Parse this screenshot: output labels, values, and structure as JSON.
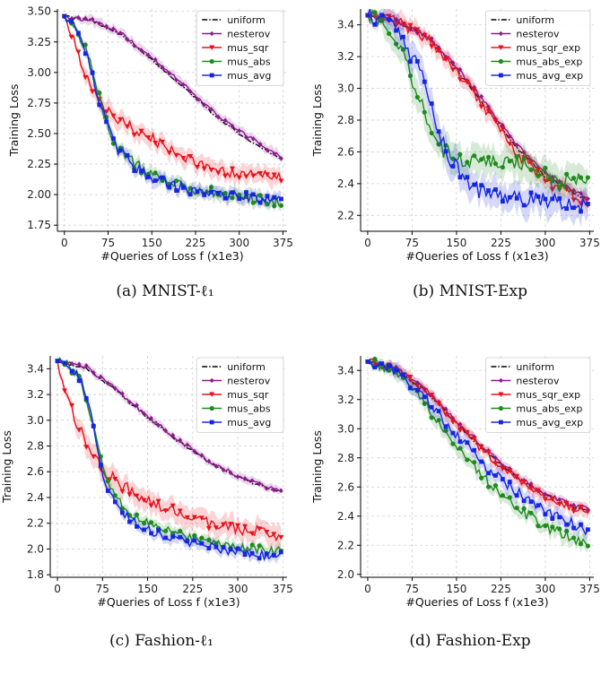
{
  "chart_data": [
    {
      "type": "line",
      "caption": "(a) MNIST-ℓ₁",
      "xlabel": "#Queries of Loss f (x1e3)",
      "ylabel": "Training Loss",
      "xlim": [
        -12,
        382
      ],
      "ylim": [
        1.7,
        3.52
      ],
      "xticks": [
        0,
        75,
        150,
        225,
        300,
        375
      ],
      "yticks": [
        1.75,
        2.0,
        2.25,
        2.5,
        2.75,
        3.0,
        3.25,
        3.5
      ],
      "ytick_labels": [
        "1.75",
        "2.00",
        "2.25",
        "2.50",
        "2.75",
        "3.00",
        "3.25",
        "3.50"
      ],
      "grid": true,
      "legend": "top-right",
      "series": [
        {
          "name": "uniform",
          "color": "#000000",
          "style": "dashdot",
          "marker": "none",
          "band": 0.0,
          "noise": 0.01,
          "x": [
            0,
            50,
            100,
            150,
            200,
            250,
            300,
            350,
            375
          ],
          "y": [
            3.46,
            3.42,
            3.3,
            3.1,
            2.9,
            2.68,
            2.5,
            2.35,
            2.29
          ]
        },
        {
          "name": "nesterov",
          "color": "#8b1a8b",
          "style": "solid",
          "marker": "diamond",
          "band": 0.04,
          "noise": 0.015,
          "x": [
            0,
            50,
            100,
            150,
            200,
            250,
            300,
            350,
            375
          ],
          "y": [
            3.46,
            3.42,
            3.31,
            3.12,
            2.92,
            2.7,
            2.52,
            2.37,
            2.3
          ]
        },
        {
          "name": "mus_sqr",
          "color": "#e8101a",
          "style": "solid",
          "marker": "triangle",
          "band": 0.07,
          "noise": 0.045,
          "x": [
            0,
            15,
            30,
            45,
            60,
            75,
            100,
            125,
            150,
            175,
            200,
            225,
            250,
            275,
            300,
            325,
            350,
            375
          ],
          "y": [
            3.46,
            3.28,
            3.02,
            2.9,
            2.76,
            2.68,
            2.59,
            2.52,
            2.46,
            2.38,
            2.31,
            2.26,
            2.22,
            2.19,
            2.17,
            2.16,
            2.15,
            2.13
          ]
        },
        {
          "name": "mus_abs",
          "color": "#1f8b1f",
          "style": "solid",
          "marker": "circle",
          "band": 0.05,
          "noise": 0.045,
          "x": [
            0,
            20,
            40,
            60,
            75,
            90,
            110,
            130,
            150,
            175,
            200,
            225,
            250,
            275,
            300,
            325,
            350,
            375
          ],
          "y": [
            3.46,
            3.38,
            3.15,
            2.8,
            2.55,
            2.4,
            2.3,
            2.22,
            2.16,
            2.12,
            2.08,
            2.04,
            2.02,
            2.0,
            1.98,
            1.97,
            1.95,
            1.91
          ]
        },
        {
          "name": "mus_avg",
          "color": "#1526e0",
          "style": "solid",
          "marker": "square",
          "band": 0.05,
          "noise": 0.045,
          "x": [
            0,
            20,
            40,
            60,
            75,
            90,
            110,
            130,
            150,
            175,
            200,
            225,
            250,
            275,
            300,
            325,
            350,
            375
          ],
          "y": [
            3.46,
            3.38,
            3.12,
            2.78,
            2.55,
            2.38,
            2.28,
            2.2,
            2.14,
            2.1,
            2.06,
            2.03,
            2.01,
            2.0,
            1.99,
            1.98,
            1.97,
            1.95
          ]
        }
      ]
    },
    {
      "type": "line",
      "caption": "(b) MNIST-Exp",
      "xlabel": "#Queries of Loss f (x1e3)",
      "ylabel": "Training Loss",
      "xlim": [
        -12,
        382
      ],
      "ylim": [
        2.1,
        3.5
      ],
      "xticks": [
        0,
        75,
        150,
        225,
        300,
        375
      ],
      "yticks": [
        2.2,
        2.4,
        2.6,
        2.8,
        3.0,
        3.2,
        3.4
      ],
      "ytick_labels": [
        "2.2",
        "2.4",
        "2.6",
        "2.8",
        "3.0",
        "3.2",
        "3.4"
      ],
      "grid": true,
      "legend": "top-right",
      "series": [
        {
          "name": "uniform",
          "color": "#000000",
          "style": "dashdot",
          "marker": "none",
          "band": 0.0,
          "noise": 0.01,
          "x": [
            0,
            50,
            100,
            150,
            200,
            250,
            300,
            350,
            375
          ],
          "y": [
            3.46,
            3.42,
            3.33,
            3.12,
            2.88,
            2.63,
            2.44,
            2.34,
            2.29
          ]
        },
        {
          "name": "nesterov",
          "color": "#8b1a8b",
          "style": "solid",
          "marker": "diamond",
          "band": 0.03,
          "noise": 0.015,
          "x": [
            0,
            50,
            100,
            150,
            200,
            250,
            300,
            350,
            375
          ],
          "y": [
            3.46,
            3.42,
            3.33,
            3.14,
            2.9,
            2.65,
            2.46,
            2.35,
            2.31
          ]
        },
        {
          "name": "mus_sqr_exp",
          "color": "#e8101a",
          "style": "solid",
          "marker": "triangle",
          "band": 0.05,
          "noise": 0.035,
          "x": [
            0,
            50,
            100,
            150,
            200,
            250,
            300,
            350,
            375
          ],
          "y": [
            3.46,
            3.42,
            3.32,
            3.1,
            2.87,
            2.6,
            2.42,
            2.32,
            2.27
          ]
        },
        {
          "name": "mus_abs_exp",
          "color": "#1f8b1f",
          "style": "solid",
          "marker": "circle",
          "band": 0.09,
          "noise": 0.05,
          "x": [
            0,
            30,
            60,
            80,
            100,
            115,
            130,
            150,
            175,
            200,
            225,
            250,
            275,
            300,
            325,
            350,
            375
          ],
          "y": [
            3.46,
            3.4,
            3.22,
            3.0,
            2.8,
            2.66,
            2.6,
            2.56,
            2.55,
            2.55,
            2.55,
            2.54,
            2.5,
            2.45,
            2.42,
            2.42,
            2.44
          ]
        },
        {
          "name": "mus_avg_exp",
          "color": "#1526e0",
          "style": "solid",
          "marker": "square",
          "band": 0.09,
          "noise": 0.05,
          "x": [
            0,
            40,
            75,
            100,
            120,
            140,
            160,
            175,
            200,
            225,
            250,
            275,
            300,
            325,
            350,
            375
          ],
          "y": [
            3.46,
            3.4,
            3.2,
            3.0,
            2.72,
            2.55,
            2.44,
            2.38,
            2.34,
            2.32,
            2.31,
            2.3,
            2.3,
            2.29,
            2.28,
            2.25
          ]
        }
      ]
    },
    {
      "type": "line",
      "caption": "(c) Fashion-ℓ₁",
      "xlabel": "#Queries of Loss f (x1e3)",
      "ylabel": "Training Loss",
      "xlim": [
        -12,
        382
      ],
      "ylim": [
        1.78,
        3.5
      ],
      "xticks": [
        0,
        75,
        150,
        225,
        300,
        375
      ],
      "yticks": [
        1.8,
        2.0,
        2.2,
        2.4,
        2.6,
        2.8,
        3.0,
        3.2,
        3.4
      ],
      "ytick_labels": [
        "1.8",
        "2.0",
        "2.2",
        "2.4",
        "2.6",
        "2.8",
        "3.0",
        "3.2",
        "3.4"
      ],
      "grid": true,
      "legend": "top-right",
      "series": [
        {
          "name": "uniform",
          "color": "#000000",
          "style": "dashdot",
          "marker": "none",
          "band": 0.0,
          "noise": 0.01,
          "x": [
            0,
            50,
            100,
            150,
            200,
            250,
            300,
            350,
            375
          ],
          "y": [
            3.46,
            3.4,
            3.22,
            3.02,
            2.84,
            2.68,
            2.56,
            2.47,
            2.45
          ]
        },
        {
          "name": "nesterov",
          "color": "#8b1a8b",
          "style": "solid",
          "marker": "diamond",
          "band": 0.03,
          "noise": 0.015,
          "x": [
            0,
            50,
            100,
            150,
            200,
            250,
            300,
            350,
            375
          ],
          "y": [
            3.46,
            3.41,
            3.23,
            3.03,
            2.85,
            2.69,
            2.57,
            2.48,
            2.46
          ]
        },
        {
          "name": "mus_sqr",
          "color": "#e8101a",
          "style": "solid",
          "marker": "triangle",
          "band": 0.08,
          "noise": 0.05,
          "x": [
            0,
            15,
            30,
            45,
            60,
            75,
            100,
            125,
            150,
            175,
            200,
            225,
            250,
            275,
            300,
            325,
            350,
            375
          ],
          "y": [
            3.46,
            3.2,
            3.0,
            2.86,
            2.72,
            2.62,
            2.52,
            2.44,
            2.38,
            2.32,
            2.27,
            2.24,
            2.21,
            2.18,
            2.16,
            2.14,
            2.12,
            2.1
          ]
        },
        {
          "name": "mus_abs",
          "color": "#1f8b1f",
          "style": "solid",
          "marker": "circle",
          "band": 0.04,
          "noise": 0.035,
          "x": [
            0,
            20,
            40,
            55,
            65,
            75,
            90,
            110,
            130,
            150,
            175,
            200,
            225,
            250,
            275,
            300,
            325,
            350,
            375
          ],
          "y": [
            3.46,
            3.42,
            3.3,
            3.05,
            2.85,
            2.62,
            2.45,
            2.32,
            2.25,
            2.2,
            2.16,
            2.12,
            2.09,
            2.06,
            2.04,
            2.02,
            2.0,
            1.99,
            1.98
          ]
        },
        {
          "name": "mus_avg",
          "color": "#1526e0",
          "style": "solid",
          "marker": "square",
          "band": 0.04,
          "noise": 0.035,
          "x": [
            0,
            20,
            40,
            55,
            65,
            75,
            90,
            110,
            130,
            150,
            175,
            200,
            225,
            250,
            275,
            300,
            325,
            350,
            375
          ],
          "y": [
            3.46,
            3.42,
            3.3,
            3.05,
            2.82,
            2.58,
            2.4,
            2.27,
            2.2,
            2.15,
            2.11,
            2.07,
            2.04,
            2.02,
            2.0,
            1.98,
            1.96,
            1.95,
            1.96
          ]
        }
      ]
    },
    {
      "type": "line",
      "caption": "(d) Fashion-Exp",
      "xlabel": "#Queries of Loss f (x1e3)",
      "ylabel": "Training Loss",
      "xlim": [
        -12,
        382
      ],
      "ylim": [
        1.98,
        3.5
      ],
      "xticks": [
        0,
        75,
        150,
        225,
        300,
        375
      ],
      "yticks": [
        2.0,
        2.2,
        2.4,
        2.6,
        2.8,
        3.0,
        3.2,
        3.4
      ],
      "ytick_labels": [
        "2.0",
        "2.2",
        "2.4",
        "2.6",
        "2.8",
        "3.0",
        "3.2",
        "3.4"
      ],
      "grid": true,
      "legend": "top-right",
      "series": [
        {
          "name": "uniform",
          "color": "#000000",
          "style": "dashdot",
          "marker": "none",
          "band": 0.0,
          "noise": 0.01,
          "x": [
            0,
            50,
            100,
            150,
            200,
            250,
            300,
            350,
            375
          ],
          "y": [
            3.46,
            3.41,
            3.25,
            3.04,
            2.84,
            2.67,
            2.55,
            2.46,
            2.44
          ]
        },
        {
          "name": "nesterov",
          "color": "#8b1a8b",
          "style": "solid",
          "marker": "diamond",
          "band": 0.03,
          "noise": 0.015,
          "x": [
            0,
            50,
            100,
            150,
            200,
            250,
            300,
            350,
            375
          ],
          "y": [
            3.46,
            3.41,
            3.26,
            3.05,
            2.85,
            2.68,
            2.55,
            2.47,
            2.45
          ]
        },
        {
          "name": "mus_sqr_exp",
          "color": "#e8101a",
          "style": "solid",
          "marker": "triangle",
          "band": 0.04,
          "noise": 0.025,
          "x": [
            0,
            50,
            100,
            150,
            200,
            250,
            300,
            350,
            375
          ],
          "y": [
            3.46,
            3.41,
            3.25,
            3.03,
            2.83,
            2.66,
            2.54,
            2.45,
            2.43
          ]
        },
        {
          "name": "mus_abs_exp",
          "color": "#1f8b1f",
          "style": "solid",
          "marker": "circle",
          "band": 0.05,
          "noise": 0.035,
          "x": [
            0,
            50,
            100,
            150,
            200,
            250,
            300,
            350,
            375
          ],
          "y": [
            3.46,
            3.4,
            3.15,
            2.88,
            2.65,
            2.46,
            2.33,
            2.24,
            2.18
          ]
        },
        {
          "name": "mus_avg_exp",
          "color": "#1526e0",
          "style": "solid",
          "marker": "square",
          "band": 0.05,
          "noise": 0.035,
          "x": [
            0,
            50,
            100,
            150,
            200,
            250,
            300,
            350,
            375
          ],
          "y": [
            3.46,
            3.4,
            3.2,
            2.96,
            2.74,
            2.57,
            2.44,
            2.34,
            2.28
          ]
        }
      ]
    }
  ]
}
